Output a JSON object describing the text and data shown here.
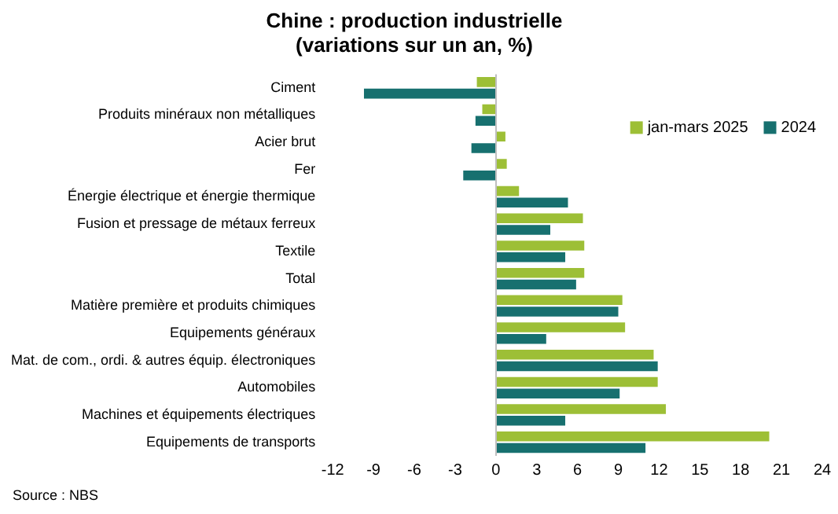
{
  "chart_data": {
    "type": "bar",
    "orientation": "horizontal",
    "title": "Chine : production industrielle\n(variations sur un an, %)",
    "categories": [
      "Ciment",
      "Produits minéraux non métalliques",
      "Acier brut",
      "Fer",
      "Énergie électrique et énergie thermique",
      "Fusion et pressage de métaux ferreux",
      "Textile",
      "Total",
      "Matière première et produits chimiques",
      "Equipements généraux",
      "Mat. de com., ordi. & autres équip. électroniques",
      "Automobiles",
      "Machines et équipements électriques",
      "Equipements de transports"
    ],
    "series": [
      {
        "name": "jan-mars 2025",
        "color": "#9dbf36",
        "values": [
          -1.4,
          -1.0,
          0.7,
          0.8,
          1.7,
          6.4,
          6.5,
          6.5,
          9.3,
          9.5,
          11.6,
          11.9,
          12.5,
          20.1
        ]
      },
      {
        "name": "2024",
        "color": "#17706f",
        "values": [
          -9.7,
          -1.5,
          -1.8,
          -2.4,
          5.3,
          4.0,
          5.1,
          5.9,
          9.0,
          3.7,
          11.9,
          9.1,
          5.1,
          11.0
        ]
      }
    ],
    "xlim": [
      -12,
      24
    ],
    "xticks": [
      -12,
      -9,
      -6,
      -3,
      0,
      3,
      6,
      9,
      12,
      15,
      18,
      21,
      24
    ],
    "legend": "top right",
    "grid": false,
    "ref_lines": [
      {
        "axis": "x",
        "value": 0,
        "color": "#bfbfbf"
      }
    ],
    "annotations": [
      "Source : NBS"
    ]
  }
}
